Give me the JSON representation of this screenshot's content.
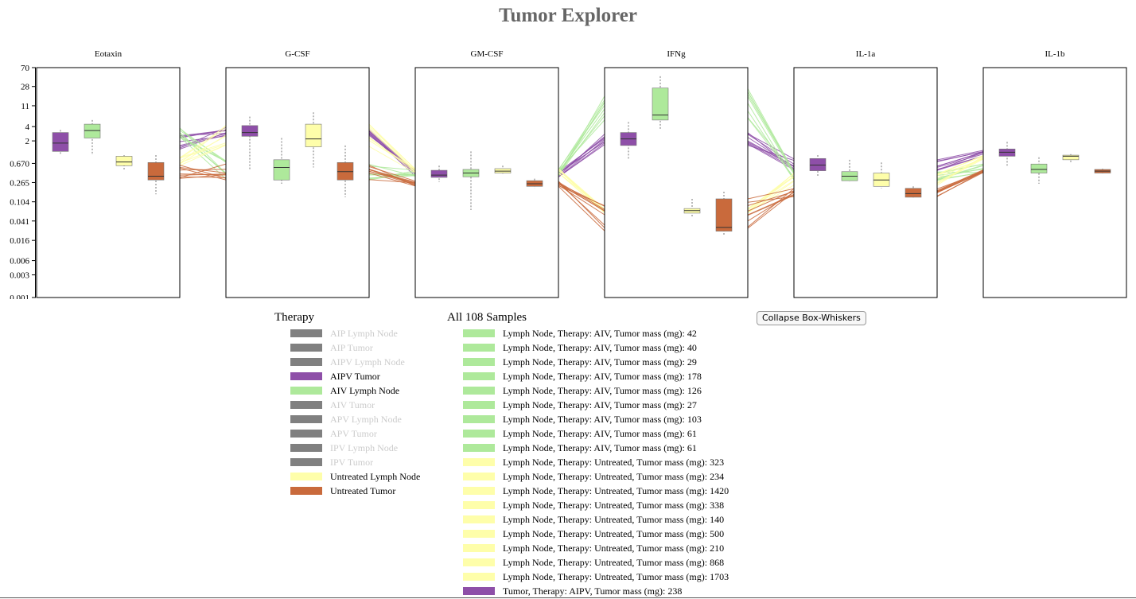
{
  "title": "Tumor Explorer",
  "collapse_button": "Collapse Box-Whiskers",
  "therapy_legend": {
    "title": "Therapy",
    "items": [
      {
        "label": "AIP Lymph Node",
        "color": "#808080",
        "active": false
      },
      {
        "label": "AIP Tumor",
        "color": "#808080",
        "active": false
      },
      {
        "label": "AIPV Lymph Node",
        "color": "#808080",
        "active": false
      },
      {
        "label": "AIPV Tumor",
        "color": "#8e4fa8",
        "active": true
      },
      {
        "label": "AIV Lymph Node",
        "color": "#aee99b",
        "active": true
      },
      {
        "label": "AIV Tumor",
        "color": "#808080",
        "active": false
      },
      {
        "label": "APV Lymph Node",
        "color": "#808080",
        "active": false
      },
      {
        "label": "APV Tumor",
        "color": "#808080",
        "active": false
      },
      {
        "label": "IPV Lymph Node",
        "color": "#808080",
        "active": false
      },
      {
        "label": "IPV Tumor",
        "color": "#808080",
        "active": false
      },
      {
        "label": "Untreated Lymph Node",
        "color": "#fefeaa",
        "active": true
      },
      {
        "label": "Untreated Tumor",
        "color": "#c96a3c",
        "active": true
      }
    ]
  },
  "sample_legend": {
    "title": "All 108 Samples",
    "items": [
      {
        "label": "Lymph Node, Therapy: AIV, Tumor mass (mg): 42",
        "color": "#aee99b"
      },
      {
        "label": "Lymph Node, Therapy: AIV, Tumor mass (mg): 40",
        "color": "#aee99b"
      },
      {
        "label": "Lymph Node, Therapy: AIV, Tumor mass (mg): 29",
        "color": "#aee99b"
      },
      {
        "label": "Lymph Node, Therapy: AIV, Tumor mass (mg): 178",
        "color": "#aee99b"
      },
      {
        "label": "Lymph Node, Therapy: AIV, Tumor mass (mg): 126",
        "color": "#aee99b"
      },
      {
        "label": "Lymph Node, Therapy: AIV, Tumor mass (mg): 27",
        "color": "#aee99b"
      },
      {
        "label": "Lymph Node, Therapy: AIV, Tumor mass (mg): 103",
        "color": "#aee99b"
      },
      {
        "label": "Lymph Node, Therapy: AIV, Tumor mass (mg): 61",
        "color": "#aee99b"
      },
      {
        "label": "Lymph Node, Therapy: AIV, Tumor mass (mg): 61",
        "color": "#aee99b"
      },
      {
        "label": "Lymph Node, Therapy: Untreated, Tumor mass (mg): 323",
        "color": "#fefeaa"
      },
      {
        "label": "Lymph Node, Therapy: Untreated, Tumor mass (mg): 234",
        "color": "#fefeaa"
      },
      {
        "label": "Lymph Node, Therapy: Untreated, Tumor mass (mg): 1420",
        "color": "#fefeaa"
      },
      {
        "label": "Lymph Node, Therapy: Untreated, Tumor mass (mg): 338",
        "color": "#fefeaa"
      },
      {
        "label": "Lymph Node, Therapy: Untreated, Tumor mass (mg): 140",
        "color": "#fefeaa"
      },
      {
        "label": "Lymph Node, Therapy: Untreated, Tumor mass (mg): 500",
        "color": "#fefeaa"
      },
      {
        "label": "Lymph Node, Therapy: Untreated, Tumor mass (mg): 210",
        "color": "#fefeaa"
      },
      {
        "label": "Lymph Node, Therapy: Untreated, Tumor mass (mg): 868",
        "color": "#fefeaa"
      },
      {
        "label": "Lymph Node, Therapy: Untreated, Tumor mass (mg): 1703",
        "color": "#fefeaa"
      },
      {
        "label": "Tumor, Therapy: AIPV, Tumor mass (mg): 238",
        "color": "#8e4fa8"
      }
    ]
  },
  "chart_data": {
    "type": "box",
    "scale": "log",
    "y_ticks": [
      "70",
      "28",
      "11",
      "4",
      "2",
      "0.670",
      "0.265",
      "0.104",
      "0.041",
      "0.016",
      "0.006",
      "0.003",
      "0.001"
    ],
    "ylim": [
      0.001,
      70
    ],
    "group_colors": {
      "AIPV Tumor": "#8e4fa8",
      "AIV Lymph Node": "#aee99b",
      "Untreated Lymph Node": "#fefeaa",
      "Untreated Tumor": "#c96a3c"
    },
    "groups": [
      "AIPV Tumor",
      "AIV Lymph Node",
      "Untreated Lymph Node",
      "Untreated Tumor"
    ],
    "panels": [
      {
        "name": "Eotaxin",
        "boxes": [
          {
            "min": 1.0,
            "q1": 1.2,
            "median": 1.8,
            "q3": 3.0,
            "max": 3.4
          },
          {
            "min": 1.0,
            "q1": 2.3,
            "median": 3.3,
            "q3": 4.5,
            "max": 5.5
          },
          {
            "min": 0.5,
            "q1": 0.6,
            "median": 0.72,
            "q3": 0.95,
            "max": 1.0
          },
          {
            "min": 0.15,
            "q1": 0.3,
            "median": 0.36,
            "q3": 0.7,
            "max": 1.0
          }
        ]
      },
      {
        "name": "G-CSF",
        "boxes": [
          {
            "min": 0.5,
            "q1": 2.5,
            "median": 3.0,
            "q3": 4.2,
            "max": 6.5
          },
          {
            "min": 0.25,
            "q1": 0.3,
            "median": 0.55,
            "q3": 0.8,
            "max": 2.3
          },
          {
            "min": 0.55,
            "q1": 1.5,
            "median": 2.2,
            "q3": 4.5,
            "max": 8.0
          },
          {
            "min": 0.13,
            "q1": 0.3,
            "median": 0.45,
            "q3": 0.7,
            "max": 1.6
          }
        ]
      },
      {
        "name": "GM-CSF",
        "boxes": [
          {
            "min": 0.27,
            "q1": 0.34,
            "median": 0.38,
            "q3": 0.48,
            "max": 0.6
          },
          {
            "min": 0.07,
            "q1": 0.35,
            "median": 0.42,
            "q3": 0.5,
            "max": 1.2
          },
          {
            "min": 0.38,
            "q1": 0.42,
            "median": 0.46,
            "q3": 0.52,
            "max": 0.6
          },
          {
            "min": 0.2,
            "q1": 0.22,
            "median": 0.25,
            "q3": 0.29,
            "max": 0.32
          }
        ]
      },
      {
        "name": "IFNg",
        "boxes": [
          {
            "min": 0.8,
            "q1": 1.6,
            "median": 2.2,
            "q3": 3.0,
            "max": 5.0
          },
          {
            "min": 3.5,
            "q1": 5.5,
            "median": 7.0,
            "q3": 26.0,
            "max": 46.0
          },
          {
            "min": 0.05,
            "q1": 0.06,
            "median": 0.068,
            "q3": 0.075,
            "max": 0.12
          },
          {
            "min": 0.02,
            "q1": 0.025,
            "median": 0.03,
            "q3": 0.12,
            "max": 0.17
          }
        ]
      },
      {
        "name": "IL-1a",
        "boxes": [
          {
            "min": 0.35,
            "q1": 0.47,
            "median": 0.62,
            "q3": 0.85,
            "max": 1.0
          },
          {
            "min": 0.27,
            "q1": 0.29,
            "median": 0.36,
            "q3": 0.45,
            "max": 0.8
          },
          {
            "min": 0.2,
            "q1": 0.22,
            "median": 0.3,
            "q3": 0.42,
            "max": 0.7
          },
          {
            "min": 0.12,
            "q1": 0.13,
            "median": 0.155,
            "q3": 0.2,
            "max": 0.22
          }
        ]
      },
      {
        "name": "IL-1b",
        "boxes": [
          {
            "min": 0.6,
            "q1": 0.95,
            "median": 1.15,
            "q3": 1.35,
            "max": 1.9
          },
          {
            "min": 0.25,
            "q1": 0.42,
            "median": 0.5,
            "q3": 0.65,
            "max": 0.9
          },
          {
            "min": 0.7,
            "q1": 0.8,
            "median": 0.95,
            "q3": 1.0,
            "max": 1.05
          },
          {
            "min": 0.4,
            "q1": 0.42,
            "median": 0.46,
            "q3": 0.5,
            "max": 0.52
          }
        ]
      }
    ]
  }
}
